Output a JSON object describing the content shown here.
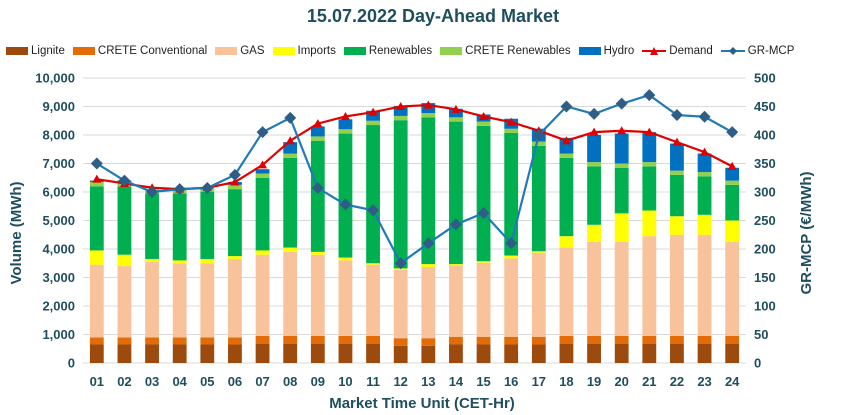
{
  "chart_data": {
    "type": "bar",
    "title": "15.07.2022  Day-Ahead Market",
    "xlabel": "Market Time Unit (CET-Hr)",
    "ylabel": "Volume (MWh)",
    "y2label": "GR-MCP (€/MWh)",
    "ylim": [
      0,
      10000
    ],
    "y2lim": [
      0,
      500
    ],
    "yticks": [
      "0",
      "1,000",
      "2,000",
      "3,000",
      "4,000",
      "5,000",
      "6,000",
      "7,000",
      "8,000",
      "9,000",
      "10,000"
    ],
    "y2ticks": [
      "0",
      "50",
      "100",
      "150",
      "200",
      "250",
      "300",
      "350",
      "400",
      "450",
      "500"
    ],
    "categories": [
      "01",
      "02",
      "03",
      "04",
      "05",
      "06",
      "07",
      "08",
      "09",
      "10",
      "11",
      "12",
      "13",
      "14",
      "15",
      "16",
      "17",
      "18",
      "19",
      "20",
      "21",
      "22",
      "23",
      "24"
    ],
    "series": [
      {
        "name": "Lignite",
        "color": "#9c4a0e",
        "values": [
          650,
          650,
          650,
          650,
          650,
          650,
          680,
          680,
          680,
          680,
          680,
          600,
          600,
          650,
          650,
          650,
          650,
          680,
          680,
          680,
          680,
          680,
          680,
          680
        ]
      },
      {
        "name": "CRETE Conventional",
        "color": "#e36c09",
        "values": [
          250,
          250,
          250,
          250,
          250,
          250,
          270,
          270,
          270,
          270,
          270,
          270,
          270,
          270,
          270,
          270,
          270,
          270,
          270,
          270,
          270,
          270,
          270,
          270
        ]
      },
      {
        "name": "GAS",
        "color": "#f8c29a",
        "values": [
          2550,
          2500,
          2650,
          2600,
          2600,
          2750,
          2850,
          2950,
          2850,
          2650,
          2500,
          2400,
          2500,
          2500,
          2600,
          2750,
          2950,
          3100,
          3300,
          3300,
          3500,
          3550,
          3550,
          3300
        ]
      },
      {
        "name": "Imports",
        "color": "#ffff00",
        "values": [
          500,
          400,
          100,
          100,
          150,
          100,
          150,
          150,
          100,
          100,
          50,
          50,
          100,
          50,
          50,
          100,
          50,
          400,
          600,
          1000,
          900,
          650,
          700,
          750
        ]
      },
      {
        "name": "Renewables",
        "color": "#00b050",
        "values": [
          2250,
          2400,
          2300,
          2350,
          2350,
          2350,
          2550,
          3150,
          3900,
          4350,
          4850,
          5200,
          5150,
          5000,
          4750,
          4300,
          3700,
          2750,
          2050,
          1600,
          1550,
          1450,
          1350,
          1250
        ]
      },
      {
        "name": "CRETE Renewables",
        "color": "#92d050",
        "values": [
          150,
          150,
          150,
          150,
          150,
          150,
          150,
          150,
          150,
          150,
          150,
          150,
          150,
          150,
          150,
          150,
          150,
          150,
          150,
          150,
          150,
          150,
          150,
          150
        ]
      },
      {
        "name": "Hydro",
        "color": "#0070c0",
        "values": [
          50,
          50,
          0,
          0,
          0,
          100,
          150,
          400,
          350,
          350,
          350,
          350,
          350,
          300,
          250,
          350,
          450,
          550,
          950,
          1050,
          1050,
          950,
          650,
          450
        ]
      }
    ],
    "lines": [
      {
        "name": "Demand",
        "axis": "left",
        "color": "#e00000",
        "marker": "triangle",
        "values": [
          6450,
          6300,
          6150,
          6100,
          6150,
          6350,
          6950,
          7800,
          8400,
          8650,
          8800,
          9000,
          9050,
          8900,
          8650,
          8450,
          8150,
          7800,
          8100,
          8150,
          8100,
          7750,
          7400,
          6900
        ]
      },
      {
        "name": "GR-MCP",
        "axis": "right",
        "color": "#1f7bb6",
        "marker": "diamond",
        "values": [
          350,
          320,
          300,
          305,
          307,
          330,
          405,
          430,
          307,
          278,
          268,
          175,
          210,
          243,
          263,
          210,
          400,
          450,
          437,
          455,
          470,
          435,
          432,
          405
        ]
      }
    ]
  }
}
